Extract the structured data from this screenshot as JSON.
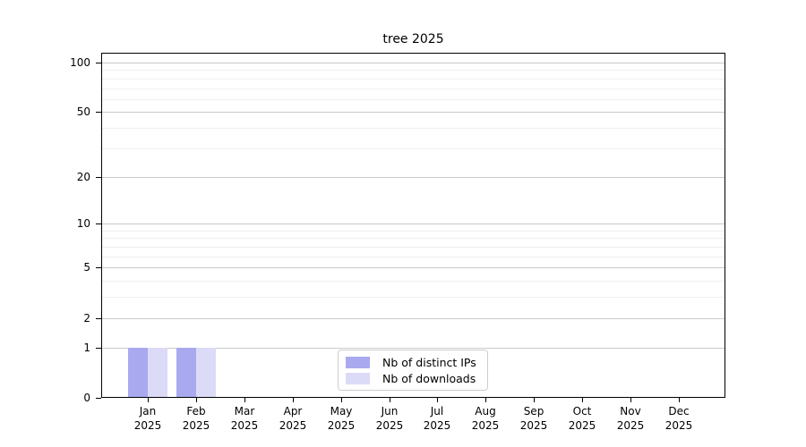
{
  "figure": {
    "background": "#ffffff"
  },
  "chart_data": {
    "type": "bar",
    "title": "tree 2025",
    "categories": [
      "Jan 2025",
      "Feb 2025",
      "Mar 2025",
      "Apr 2025",
      "May 2025",
      "Jun 2025",
      "Jul 2025",
      "Aug 2025",
      "Sep 2025",
      "Oct 2025",
      "Nov 2025",
      "Dec 2025"
    ],
    "x_tick_month": [
      "Jan",
      "Feb",
      "Mar",
      "Apr",
      "May",
      "Jun",
      "Jul",
      "Aug",
      "Sep",
      "Oct",
      "Nov",
      "Dec"
    ],
    "x_tick_year": "2025",
    "series": [
      {
        "name": "Nb of distinct IPs",
        "color": "#a9a9f0",
        "values": [
          1,
          1,
          0,
          0,
          0,
          0,
          0,
          0,
          0,
          0,
          0,
          0
        ]
      },
      {
        "name": "Nb of downloads",
        "color": "#dbdbf7",
        "values": [
          1,
          1,
          0,
          0,
          0,
          0,
          0,
          0,
          0,
          0,
          0,
          0
        ]
      }
    ],
    "xlabel": "",
    "ylabel": "",
    "yscale": "log1p",
    "ylim": [
      0,
      114.6
    ],
    "y_major_ticks": [
      0,
      1,
      2,
      5,
      10,
      20,
      50,
      100
    ],
    "y_major_tick_labels": [
      "0",
      "1",
      "2",
      "5",
      "10",
      "20",
      "50",
      "100"
    ],
    "y_minor_ticks": [
      3,
      4,
      6,
      7,
      8,
      9,
      30,
      40,
      60,
      70,
      80,
      90
    ],
    "grid": true,
    "legend": {
      "position": "lower center"
    }
  },
  "colors": {
    "major_grid": "#c9c9c9",
    "minor_grid": "#efefef",
    "axis": "#000000",
    "legend_border": "#cccccc"
  }
}
